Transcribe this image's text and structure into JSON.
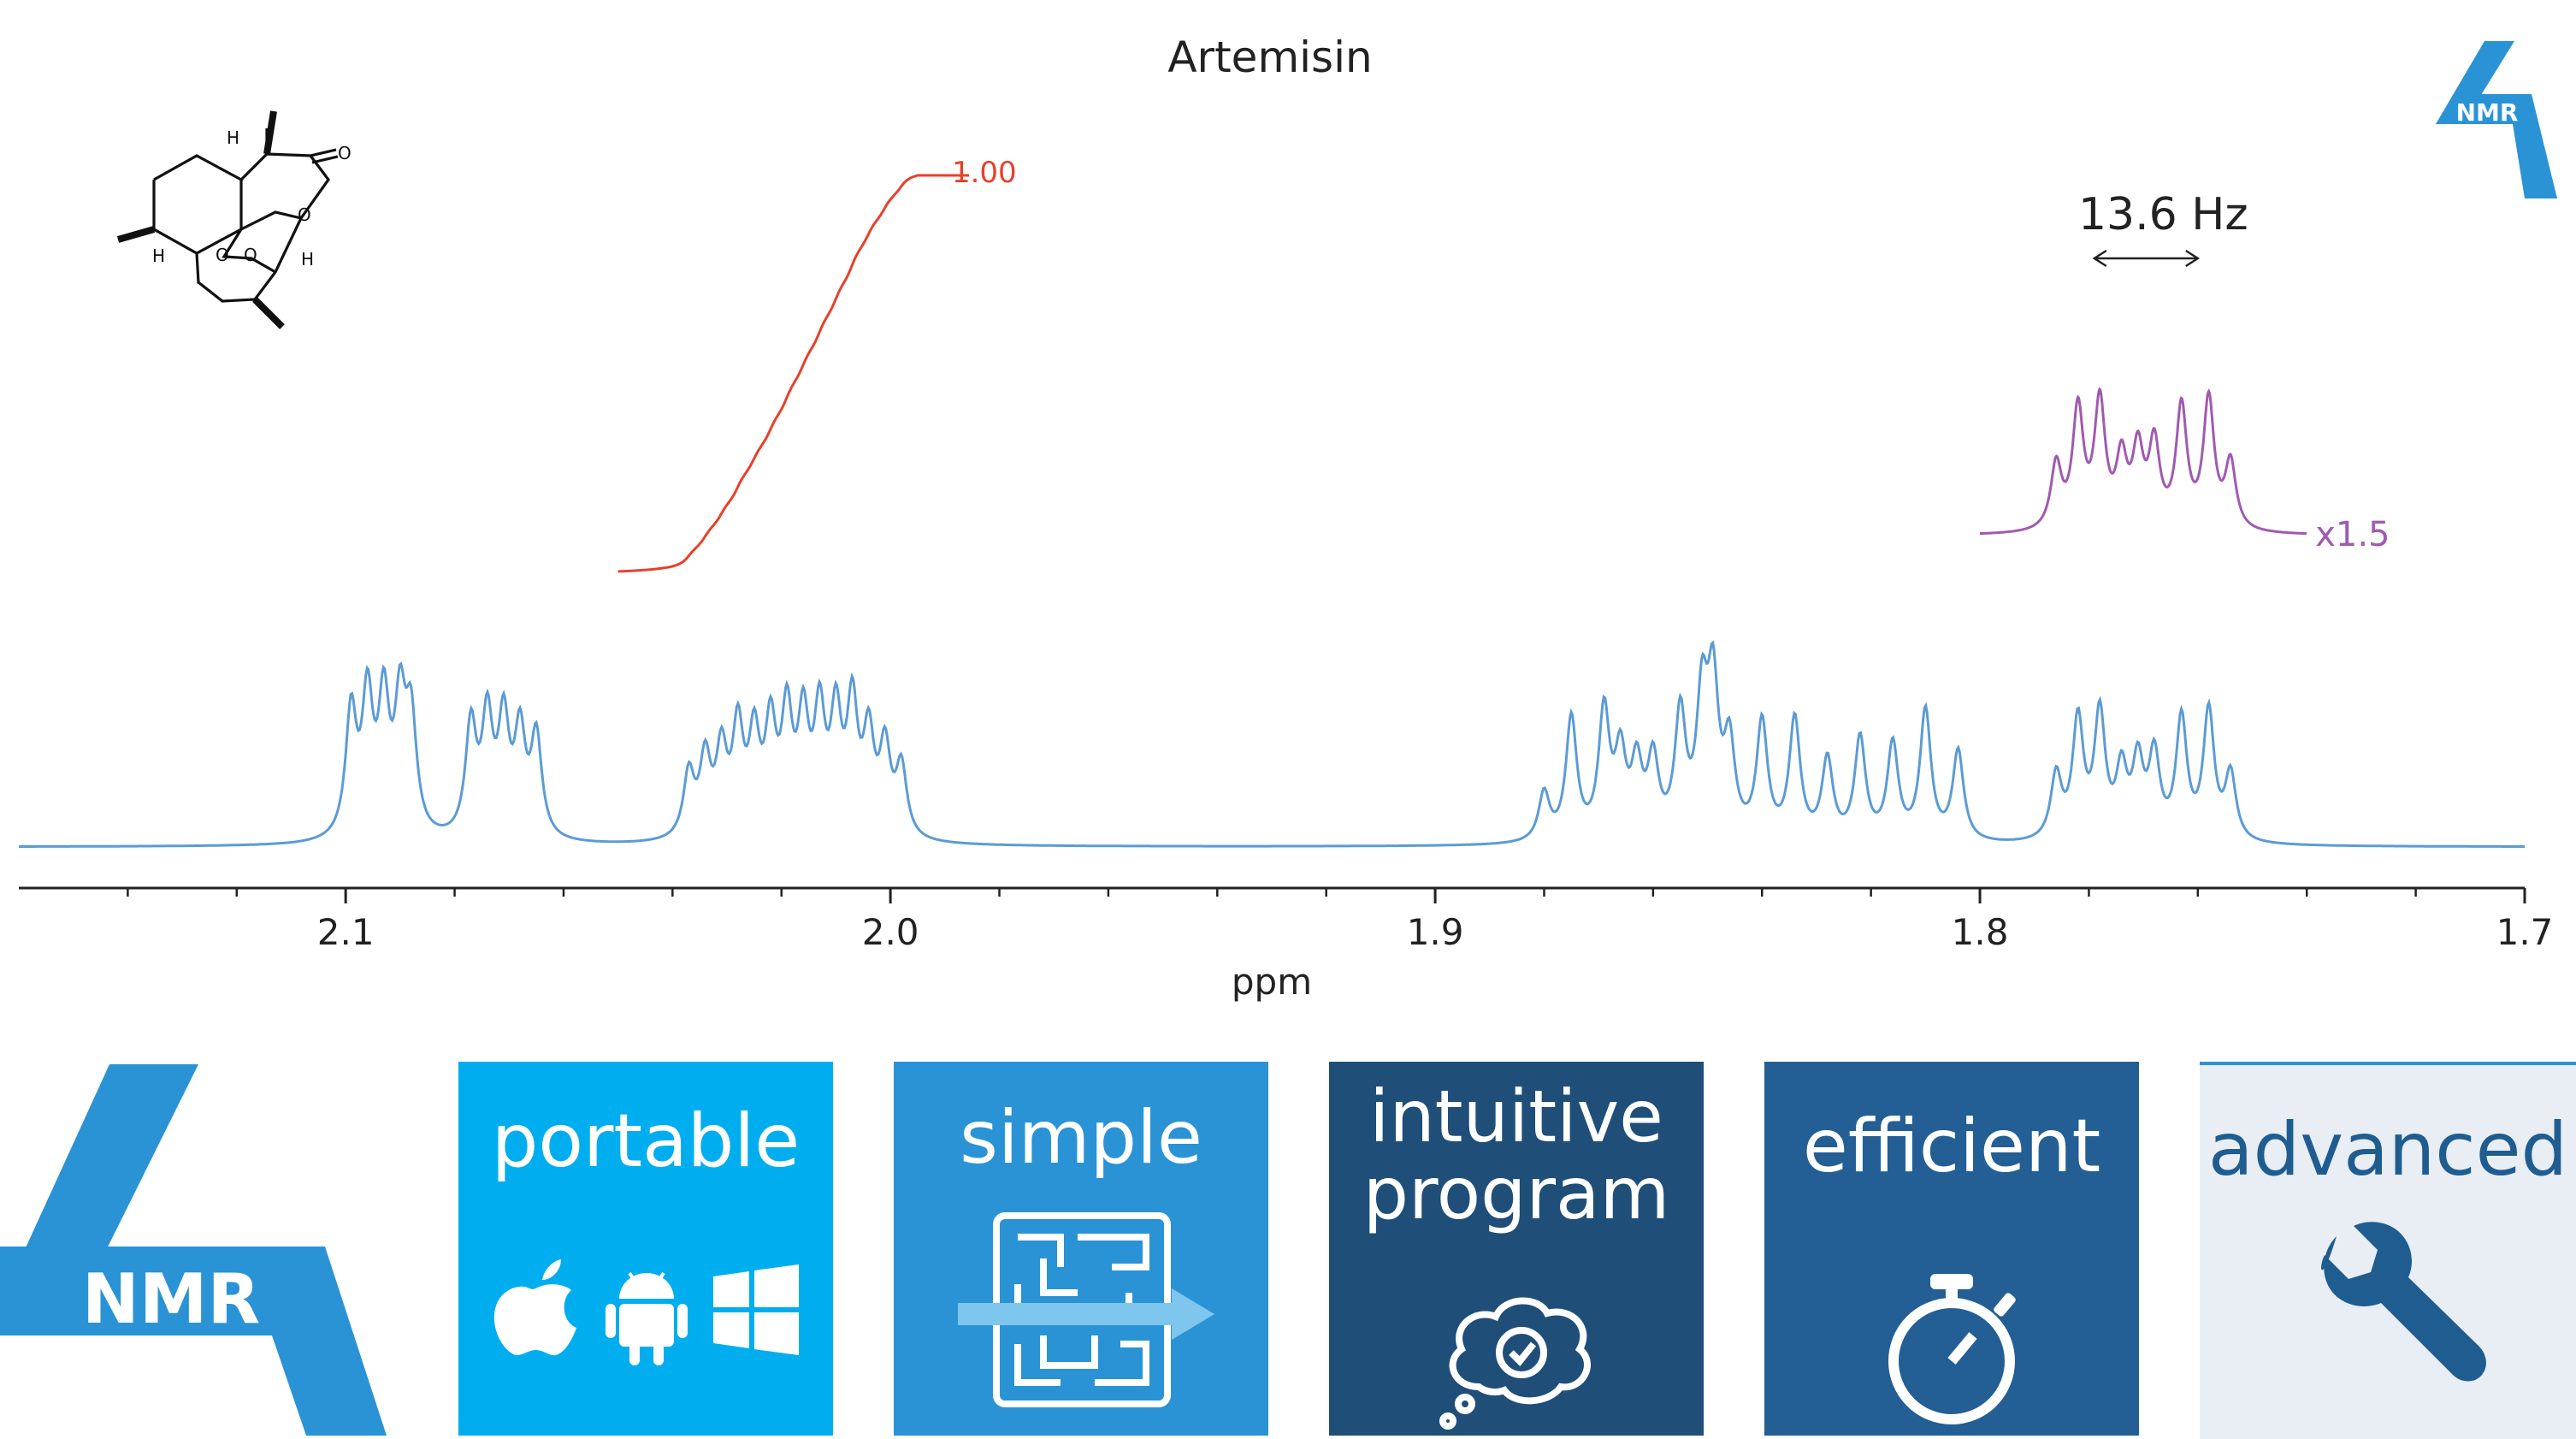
{
  "chart_data": {
    "type": "line",
    "title": "Artemisin",
    "xlabel": "ppm",
    "xlim": [
      2.16,
      1.7
    ],
    "x_ticks": [
      "2.1",
      "2.0",
      "1.9",
      "1.8",
      "1.7"
    ],
    "x_tick_values": [
      2.1,
      2.0,
      1.9,
      1.8,
      1.7
    ],
    "minor_tick_step": 0.02,
    "grid": false,
    "series": [
      {
        "name": "",
        "color": "#5b9bd5",
        "baseline_intensity": 0.0,
        "multiplets": [
          {
            "center": 2.085,
            "peaks_ppm": [
              2.099,
              2.096,
              2.093,
              2.09,
              2.088,
              2.077,
              2.074,
              2.071,
              2.068,
              2.065
            ],
            "heights": [
              0.62,
              0.67,
              0.65,
              0.62,
              0.56,
              0.55,
              0.57,
              0.56,
              0.5,
              0.5
            ]
          },
          {
            "center": 2.015,
            "peaks_ppm": [
              2.037,
              2.034,
              2.031,
              2.028,
              2.025,
              2.022,
              2.019,
              2.016,
              2.013,
              2.01,
              2.007,
              2.004,
              2.001,
              1.998
            ],
            "heights": [
              0.32,
              0.38,
              0.41,
              0.52,
              0.47,
              0.52,
              0.58,
              0.55,
              0.58,
              0.57,
              0.63,
              0.48,
              0.43,
              0.35
            ]
          },
          {
            "center": 1.85,
            "peaks_ppm": [
              1.88,
              1.875,
              1.869,
              1.866,
              1.863,
              1.86,
              1.855,
              1.851,
              1.849,
              1.846,
              1.84,
              1.834,
              1.828,
              1.822,
              1.816,
              1.81,
              1.804
            ],
            "heights": [
              0.24,
              0.61,
              0.63,
              0.4,
              0.35,
              0.38,
              0.61,
              0.65,
              0.72,
              0.45,
              0.58,
              0.6,
              0.4,
              0.51,
              0.48,
              0.65,
              0.45
            ]
          },
          {
            "center": 1.768,
            "peaks_ppm": [
              1.786,
              1.782,
              1.778,
              1.774,
              1.771,
              1.768,
              1.763,
              1.758,
              1.754
            ],
            "heights": [
              0.32,
              0.59,
              0.62,
              0.33,
              0.37,
              0.41,
              0.6,
              0.64,
              0.33
            ]
          }
        ]
      },
      {
        "name": "integral",
        "color": "#e8402a",
        "x_start": 2.05,
        "x_end": 1.995,
        "label": "1.00"
      },
      {
        "name": "expanded multiplet",
        "color": "#a05ab0",
        "scale_label": "x1.5",
        "coupling_label": "13.6 Hz",
        "coupling_ppm": [
          1.779,
          1.76
        ]
      }
    ]
  },
  "bottom_banner": {
    "logo_text": "NMR",
    "tiles": [
      {
        "label": "portable",
        "color": "#00aeef"
      },
      {
        "label": "simple",
        "color": "#2a93d5"
      },
      {
        "label_line1": "intuitive",
        "label_line2": "program",
        "color": "#1f4e79"
      },
      {
        "label": "efficient",
        "color": "#235f95"
      },
      {
        "label": "advanced",
        "color": "#e9eef4",
        "text_color": "#1f5d91"
      }
    ]
  },
  "corner_logo_text": "NMR",
  "molecule_labels": [
    "H",
    "O",
    "O",
    "H",
    "H",
    "O",
    "O"
  ]
}
